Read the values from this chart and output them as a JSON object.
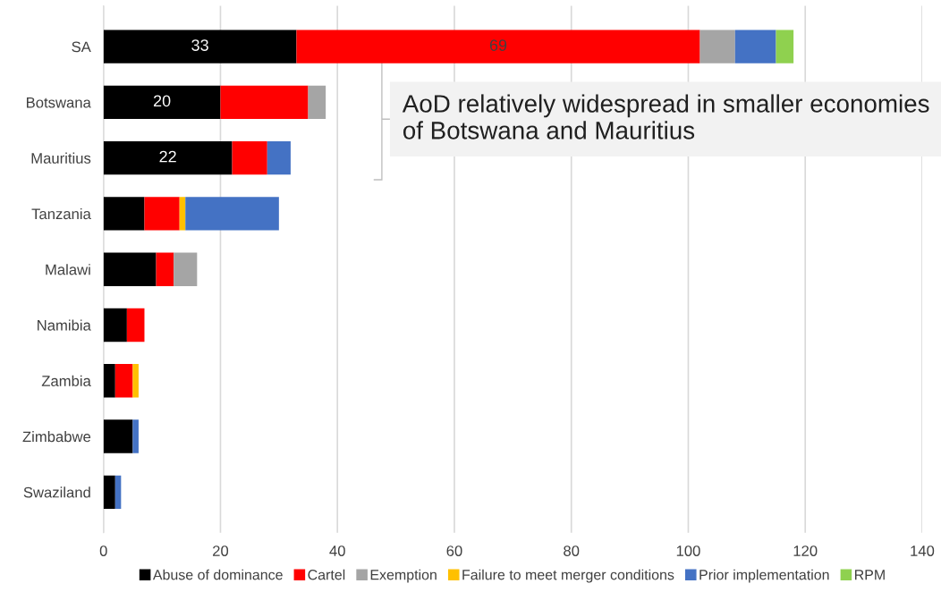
{
  "chart_data": {
    "type": "bar",
    "orientation": "horizontal",
    "stacked": true,
    "categories": [
      "SA",
      "Botswana",
      "Mauritius",
      "Tanzania",
      "Malawi",
      "Namibia",
      "Zambia",
      "Zimbabwe",
      "Swaziland"
    ],
    "series": [
      {
        "name": "Abuse of dominance",
        "color": "#000000",
        "values": [
          33,
          20,
          22,
          7,
          9,
          4,
          2,
          5,
          2
        ],
        "value_labels": [
          "33",
          "20",
          "22",
          null,
          null,
          null,
          null,
          null,
          null
        ]
      },
      {
        "name": "Cartel",
        "color": "#ff0000",
        "values": [
          69,
          15,
          6,
          6,
          3,
          3,
          3,
          null,
          null
        ],
        "value_labels": [
          "69",
          null,
          null,
          null,
          null,
          null,
          null,
          null,
          null
        ]
      },
      {
        "name": "Exemption",
        "color": "#a5a5a5",
        "values": [
          6,
          3,
          null,
          null,
          4,
          null,
          null,
          null,
          null
        ]
      },
      {
        "name": "Failure to meet merger conditions",
        "color": "#ffc000",
        "values": [
          null,
          null,
          null,
          1,
          null,
          null,
          1,
          null,
          null
        ]
      },
      {
        "name": "Prior implementation",
        "color": "#4472c4",
        "values": [
          7,
          null,
          4,
          16,
          null,
          null,
          null,
          1,
          1
        ]
      },
      {
        "name": "RPM",
        "color": "#8fd14f",
        "values": [
          3,
          null,
          null,
          null,
          null,
          null,
          null,
          null,
          null
        ]
      }
    ],
    "xlim": [
      0,
      140
    ],
    "xticks": [
      0,
      20,
      40,
      60,
      80,
      100,
      120,
      140
    ],
    "grid": "x",
    "legend": "bottom",
    "annotations": [
      "AoD relatively widespread in smaller economies of Botswana and Mauritius"
    ]
  }
}
